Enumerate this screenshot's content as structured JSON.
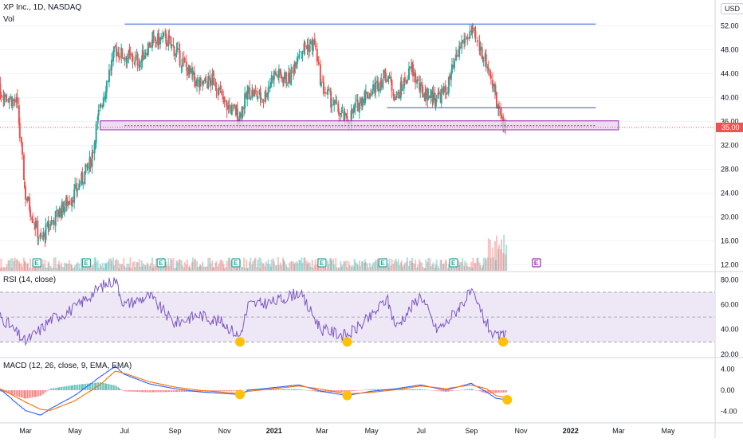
{
  "header": {
    "symbol_line": "XP Inc., 1D, NASDAQ",
    "vol_label": "Vol",
    "currency": "USD",
    "rsi_label": "RSI (14, close)",
    "macd_label": "MACD (12, 26, close, 9, EMA, EMA)"
  },
  "colors": {
    "up": "#26a69a",
    "down": "#ef5350",
    "resistance": "#5b7fe0",
    "support_zone_fill": "#e6d2ef",
    "support_zone_stroke": "#9c27b0",
    "rsi_line": "#7e57c2",
    "rsi_band": "#ede7f6",
    "macd_line": "#2962ff",
    "signal_line": "#ff6d00",
    "highlight": "#ffc107",
    "price_tag": "#ef5350"
  },
  "chart_data": [
    {
      "type": "candlestick",
      "pane": "price",
      "yaxis_ticks": [
        52,
        48,
        44,
        40,
        36,
        32,
        28,
        24,
        20,
        16,
        12
      ],
      "yaxis_labels": [
        "52.00",
        "48.00",
        "44.00",
        "40.00",
        "36.00",
        "32.00",
        "28.00",
        "24.00",
        "20.00",
        "16.00",
        "12.00"
      ],
      "ylim": [
        11,
        55
      ],
      "last_price": 35.0,
      "last_price_label": "35.00",
      "xaxis_labels": [
        "Mar",
        "May",
        "Jul",
        "Sep",
        "Nov",
        "2021",
        "Mar",
        "May",
        "Jul",
        "Sep",
        "Nov",
        "2022",
        "Mar",
        "May"
      ],
      "xaxis_dates": [
        "2020-03",
        "2020-05",
        "2020-07",
        "2020-09",
        "2020-11",
        "2021-01",
        "2021-03",
        "2021-05",
        "2021-07",
        "2021-09",
        "2021-11",
        "2022-01",
        "2022-03",
        "2022-05"
      ],
      "price_path": [
        [
          "2020-01",
          40
        ],
        [
          "2020-02",
          41
        ],
        [
          "2020-02-20",
          39
        ],
        [
          "2020-03",
          24
        ],
        [
          "2020-03-20",
          16
        ],
        [
          "2020-04",
          19
        ],
        [
          "2020-05",
          24
        ],
        [
          "2020-05-20",
          29
        ],
        [
          "2020-06",
          38
        ],
        [
          "2020-06-20",
          48
        ],
        [
          "2020-07",
          47
        ],
        [
          "2020-07-20",
          46
        ],
        [
          "2020-08",
          49
        ],
        [
          "2020-08-20",
          50
        ],
        [
          "2020-09",
          48
        ],
        [
          "2020-09-20",
          44
        ],
        [
          "2020-10",
          42
        ],
        [
          "2020-10-20",
          43
        ],
        [
          "2020-11",
          39
        ],
        [
          "2020-11-20",
          37
        ],
        [
          "2020-12",
          41
        ],
        [
          "2020-12-20",
          40
        ],
        [
          "2021-01",
          44
        ],
        [
          "2021-01-20",
          43
        ],
        [
          "2021-02",
          48
        ],
        [
          "2021-02-20",
          49
        ],
        [
          "2021-03",
          42
        ],
        [
          "2021-03-20",
          38
        ],
        [
          "2021-04",
          36
        ],
        [
          "2021-04-20",
          40
        ],
        [
          "2021-05",
          41
        ],
        [
          "2021-05-20",
          44
        ],
        [
          "2021-06",
          40
        ],
        [
          "2021-06-20",
          45
        ],
        [
          "2021-07",
          41
        ],
        [
          "2021-07-20",
          40
        ],
        [
          "2021-08",
          41
        ],
        [
          "2021-08-20",
          49
        ],
        [
          "2021-09",
          51
        ],
        [
          "2021-09-20",
          46
        ],
        [
          "2021-10",
          40
        ],
        [
          "2021-10-10",
          36
        ],
        [
          "2021-10-15",
          35
        ]
      ],
      "annotations": {
        "resistance": {
          "y": 52.3,
          "x_start": "2020-07",
          "x_end": "2022-02"
        },
        "support_line": {
          "y": 38.3,
          "x_start": "2021-05-20",
          "x_end": "2022-02"
        },
        "support_zone": {
          "y_low": 34.6,
          "y_high": 36.1,
          "x_start": "2020-06",
          "x_end": "2022-03"
        },
        "dotted_level": {
          "y": 35.3,
          "x_start": "2020-07",
          "x_end": "2022-02"
        },
        "earnings_markers": [
          "2020-03-15",
          "2020-05-15",
          "2020-08-15",
          "2020-11-15",
          "2021-03-01",
          "2021-05-15",
          "2021-08-10"
        ],
        "earnings_marker_upcoming": "2021-11-20",
        "earnings_glyph": "E"
      }
    },
    {
      "type": "line",
      "pane": "rsi",
      "yaxis_labels": [
        "80.00",
        "60.00",
        "40.00",
        "20.00"
      ],
      "yaxis_ticks": [
        80,
        60,
        40,
        20
      ],
      "band": [
        30,
        70
      ],
      "midline": 50,
      "ylim": [
        18,
        86
      ],
      "values_path": [
        [
          "2020-01",
          57
        ],
        [
          "2020-02",
          50
        ],
        [
          "2020-03",
          30
        ],
        [
          "2020-03-20",
          40
        ],
        [
          "2020-04",
          48
        ],
        [
          "2020-05",
          57
        ],
        [
          "2020-06",
          74
        ],
        [
          "2020-06-20",
          80
        ],
        [
          "2020-07",
          60
        ],
        [
          "2020-08",
          67
        ],
        [
          "2020-09",
          45
        ],
        [
          "2020-10",
          52
        ],
        [
          "2020-11",
          45
        ],
        [
          "2020-11-20",
          34
        ],
        [
          "2020-12",
          60
        ],
        [
          "2021-01",
          62
        ],
        [
          "2021-02",
          70
        ],
        [
          "2021-03",
          40
        ],
        [
          "2021-04",
          35
        ],
        [
          "2021-05",
          50
        ],
        [
          "2021-05-20",
          65
        ],
        [
          "2021-06",
          42
        ],
        [
          "2021-07",
          68
        ],
        [
          "2021-07-20",
          40
        ],
        [
          "2021-08",
          45
        ],
        [
          "2021-09",
          70
        ],
        [
          "2021-09-20",
          45
        ],
        [
          "2021-10",
          33
        ],
        [
          "2021-10-15",
          36
        ]
      ],
      "highlights": [
        "2020-11-20",
        "2021-04",
        "2021-10-10"
      ]
    },
    {
      "type": "macd",
      "pane": "macd",
      "yaxis_labels": [
        "4.00",
        "0.00",
        "-4.00"
      ],
      "yaxis_ticks": [
        4,
        0,
        -4
      ],
      "ylim": [
        -6,
        6
      ],
      "macd_path": [
        [
          "2020-01",
          0.3
        ],
        [
          "2020-02",
          0.0
        ],
        [
          "2020-03",
          -3.8
        ],
        [
          "2020-03-20",
          -4.7
        ],
        [
          "2020-04",
          -3.5
        ],
        [
          "2020-05",
          -1.0
        ],
        [
          "2020-06",
          2.5
        ],
        [
          "2020-06-20",
          4.5
        ],
        [
          "2020-07",
          3.0
        ],
        [
          "2020-08",
          1.2
        ],
        [
          "2020-09",
          0.3
        ],
        [
          "2020-10",
          -0.3
        ],
        [
          "2020-11",
          -0.6
        ],
        [
          "2020-11-20",
          -0.8
        ],
        [
          "2020-12",
          0.0
        ],
        [
          "2021-01",
          0.5
        ],
        [
          "2021-02",
          1.0
        ],
        [
          "2021-03",
          -0.2
        ],
        [
          "2021-04",
          -1.0
        ],
        [
          "2021-05",
          -0.2
        ],
        [
          "2021-06",
          0.3
        ],
        [
          "2021-07",
          1.0
        ],
        [
          "2021-08",
          0.0
        ],
        [
          "2021-09",
          1.3
        ],
        [
          "2021-09-20",
          -0.3
        ],
        [
          "2021-10",
          -1.5
        ],
        [
          "2021-10-15",
          -1.8
        ]
      ],
      "signal_path": [
        [
          "2020-01",
          0.4
        ],
        [
          "2020-02",
          0.2
        ],
        [
          "2020-03",
          -2.2
        ],
        [
          "2020-03-20",
          -3.6
        ],
        [
          "2020-04",
          -3.8
        ],
        [
          "2020-05",
          -2.0
        ],
        [
          "2020-06",
          1.0
        ],
        [
          "2020-06-20",
          3.6
        ],
        [
          "2020-07",
          3.2
        ],
        [
          "2020-08",
          1.6
        ],
        [
          "2020-09",
          0.6
        ],
        [
          "2020-10",
          0.0
        ],
        [
          "2020-11",
          -0.4
        ],
        [
          "2020-11-20",
          -0.6
        ],
        [
          "2020-12",
          -0.2
        ],
        [
          "2021-01",
          0.3
        ],
        [
          "2021-02",
          0.8
        ],
        [
          "2021-03",
          0.2
        ],
        [
          "2021-04",
          -0.7
        ],
        [
          "2021-05",
          -0.4
        ],
        [
          "2021-06",
          0.1
        ],
        [
          "2021-07",
          0.8
        ],
        [
          "2021-08",
          0.3
        ],
        [
          "2021-09",
          1.0
        ],
        [
          "2021-09-20",
          0.3
        ],
        [
          "2021-10",
          -1.0
        ],
        [
          "2021-10-15",
          -1.4
        ]
      ],
      "highlights": [
        "2020-11-20",
        "2021-04",
        "2021-10-15"
      ]
    }
  ]
}
